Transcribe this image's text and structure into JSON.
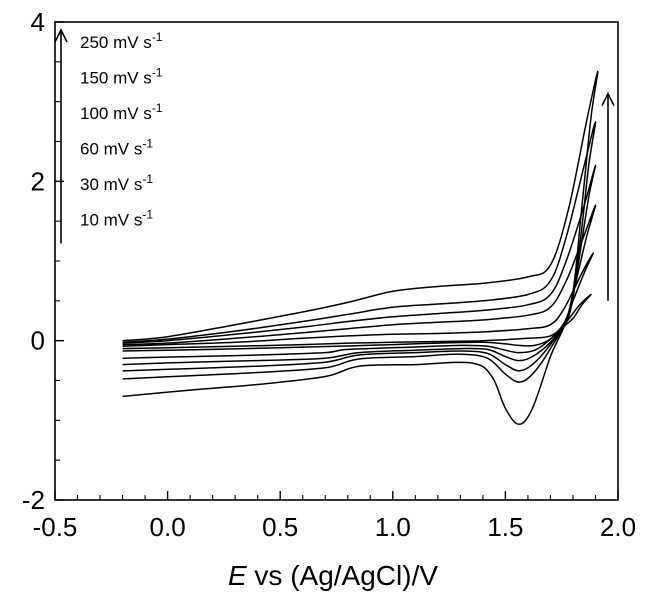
{
  "chart_data": {
    "type": "line",
    "title": "",
    "xlabel_italic": "E",
    "xlabel_rest": " vs (Ag/AgCl)/V",
    "ylabel": "",
    "xlim": [
      -0.5,
      2.0
    ],
    "ylim": [
      -2,
      4
    ],
    "x_ticks": [
      -0.5,
      0.0,
      0.5,
      1.0,
      1.5,
      2.0
    ],
    "x_tick_labels": [
      "-0.5",
      "0.0",
      "0.5",
      "1.0",
      "1.5",
      "2.0"
    ],
    "y_ticks": [
      -2,
      0,
      2,
      4
    ],
    "y_tick_labels": [
      "-2",
      "0",
      "2",
      "4"
    ],
    "grid": false,
    "legend_placement": "top-left",
    "line_color": "#000000",
    "legend": {
      "entries": [
        {
          "value": "250 mV s",
          "exp": "-1"
        },
        {
          "value": "150 mV s",
          "exp": "-1"
        },
        {
          "value": "100 mV s",
          "exp": "-1"
        },
        {
          "value": "60 mV s",
          "exp": "-1"
        },
        {
          "value": "30 mV s",
          "exp": "-1"
        },
        {
          "value": "10 mV s",
          "exp": "-1"
        }
      ],
      "arrow_direction": "up"
    },
    "right_arrow": {
      "x": 2.0,
      "y_from": 0.5,
      "y_to": 3.1
    },
    "series": [
      {
        "scan_rate_mV_s": 10,
        "forward": [
          [
            -0.2,
            -0.1
          ],
          [
            0.0,
            -0.09
          ],
          [
            0.3,
            -0.07
          ],
          [
            0.6,
            -0.05
          ],
          [
            0.8,
            -0.03
          ],
          [
            1.0,
            -0.02
          ],
          [
            1.2,
            -0.01
          ],
          [
            1.4,
            0.0
          ],
          [
            1.6,
            0.03
          ],
          [
            1.7,
            0.06
          ],
          [
            1.76,
            0.2
          ],
          [
            1.83,
            0.45
          ],
          [
            1.88,
            0.58
          ]
        ],
        "reverse": [
          [
            1.88,
            0.58
          ],
          [
            1.84,
            0.45
          ],
          [
            1.8,
            0.28
          ],
          [
            1.76,
            0.18
          ],
          [
            1.7,
            0.02
          ],
          [
            1.63,
            -0.06
          ],
          [
            1.56,
            -0.06
          ],
          [
            1.5,
            -0.04
          ],
          [
            1.4,
            -0.02
          ],
          [
            1.2,
            -0.03
          ],
          [
            1.0,
            -0.05
          ],
          [
            0.75,
            -0.07
          ],
          [
            0.5,
            -0.09
          ],
          [
            0.2,
            -0.11
          ],
          [
            -0.2,
            -0.13
          ]
        ]
      },
      {
        "scan_rate_mV_s": 30,
        "forward": [
          [
            -0.2,
            -0.07
          ],
          [
            0.0,
            -0.05
          ],
          [
            0.3,
            -0.02
          ],
          [
            0.6,
            0.03
          ],
          [
            0.8,
            0.06
          ],
          [
            1.0,
            0.08
          ],
          [
            1.2,
            0.09
          ],
          [
            1.4,
            0.11
          ],
          [
            1.6,
            0.15
          ],
          [
            1.7,
            0.2
          ],
          [
            1.76,
            0.4
          ],
          [
            1.84,
            0.85
          ],
          [
            1.89,
            1.1
          ]
        ],
        "reverse": [
          [
            1.89,
            1.1
          ],
          [
            1.85,
            0.85
          ],
          [
            1.8,
            0.5
          ],
          [
            1.76,
            0.22
          ],
          [
            1.7,
            0.02
          ],
          [
            1.63,
            -0.12
          ],
          [
            1.56,
            -0.15
          ],
          [
            1.5,
            -0.12
          ],
          [
            1.42,
            -0.07
          ],
          [
            1.3,
            -0.06
          ],
          [
            1.1,
            -0.08
          ],
          [
            0.8,
            -0.11
          ],
          [
            0.7,
            -0.15
          ],
          [
            0.4,
            -0.18
          ],
          [
            0.1,
            -0.2
          ],
          [
            -0.2,
            -0.22
          ]
        ]
      },
      {
        "scan_rate_mV_s": 60,
        "forward": [
          [
            -0.2,
            -0.05
          ],
          [
            0.0,
            -0.03
          ],
          [
            0.3,
            0.03
          ],
          [
            0.6,
            0.1
          ],
          [
            0.8,
            0.15
          ],
          [
            1.0,
            0.2
          ],
          [
            1.2,
            0.23
          ],
          [
            1.4,
            0.26
          ],
          [
            1.6,
            0.32
          ],
          [
            1.7,
            0.42
          ],
          [
            1.77,
            0.75
          ],
          [
            1.84,
            1.25
          ],
          [
            1.9,
            1.7
          ]
        ],
        "reverse": [
          [
            1.9,
            1.7
          ],
          [
            1.86,
            1.3
          ],
          [
            1.81,
            0.7
          ],
          [
            1.77,
            0.25
          ],
          [
            1.7,
            -0.02
          ],
          [
            1.62,
            -0.2
          ],
          [
            1.56,
            -0.25
          ],
          [
            1.5,
            -0.2
          ],
          [
            1.42,
            -0.11
          ],
          [
            1.3,
            -0.1
          ],
          [
            1.1,
            -0.12
          ],
          [
            0.85,
            -0.15
          ],
          [
            0.7,
            -0.22
          ],
          [
            0.4,
            -0.25
          ],
          [
            0.1,
            -0.27
          ],
          [
            -0.2,
            -0.3
          ]
        ]
      },
      {
        "scan_rate_mV_s": 100,
        "forward": [
          [
            -0.2,
            -0.03
          ],
          [
            0.0,
            0.0
          ],
          [
            0.3,
            0.08
          ],
          [
            0.6,
            0.17
          ],
          [
            0.8,
            0.24
          ],
          [
            1.0,
            0.3
          ],
          [
            1.2,
            0.34
          ],
          [
            1.4,
            0.38
          ],
          [
            1.6,
            0.45
          ],
          [
            1.7,
            0.58
          ],
          [
            1.77,
            1.0
          ],
          [
            1.85,
            1.7
          ],
          [
            1.9,
            2.2
          ]
        ],
        "reverse": [
          [
            1.9,
            2.2
          ],
          [
            1.87,
            1.8
          ],
          [
            1.82,
            0.9
          ],
          [
            1.78,
            0.3
          ],
          [
            1.7,
            -0.05
          ],
          [
            1.62,
            -0.3
          ],
          [
            1.56,
            -0.38
          ],
          [
            1.5,
            -0.3
          ],
          [
            1.42,
            -0.16
          ],
          [
            1.3,
            -0.13
          ],
          [
            1.1,
            -0.15
          ],
          [
            0.85,
            -0.18
          ],
          [
            0.7,
            -0.27
          ],
          [
            0.4,
            -0.32
          ],
          [
            0.1,
            -0.35
          ],
          [
            -0.2,
            -0.38
          ]
        ]
      },
      {
        "scan_rate_mV_s": 150,
        "forward": [
          [
            -0.2,
            -0.02
          ],
          [
            0.0,
            0.02
          ],
          [
            0.3,
            0.12
          ],
          [
            0.6,
            0.24
          ],
          [
            0.8,
            0.33
          ],
          [
            1.0,
            0.42
          ],
          [
            1.2,
            0.46
          ],
          [
            1.4,
            0.5
          ],
          [
            1.6,
            0.58
          ],
          [
            1.7,
            0.75
          ],
          [
            1.77,
            1.3
          ],
          [
            1.85,
            2.2
          ],
          [
            1.9,
            2.75
          ]
        ],
        "reverse": [
          [
            1.9,
            2.75
          ],
          [
            1.87,
            2.2
          ],
          [
            1.83,
            1.2
          ],
          [
            1.78,
            0.35
          ],
          [
            1.7,
            -0.1
          ],
          [
            1.62,
            -0.42
          ],
          [
            1.56,
            -0.52
          ],
          [
            1.5,
            -0.42
          ],
          [
            1.42,
            -0.22
          ],
          [
            1.3,
            -0.17
          ],
          [
            1.1,
            -0.2
          ],
          [
            0.85,
            -0.23
          ],
          [
            0.7,
            -0.34
          ],
          [
            0.4,
            -0.4
          ],
          [
            0.1,
            -0.44
          ],
          [
            -0.2,
            -0.48
          ]
        ]
      },
      {
        "scan_rate_mV_s": 250,
        "forward": [
          [
            -0.2,
            0.0
          ],
          [
            0.0,
            0.05
          ],
          [
            0.3,
            0.2
          ],
          [
            0.6,
            0.36
          ],
          [
            0.8,
            0.48
          ],
          [
            1.0,
            0.62
          ],
          [
            1.2,
            0.68
          ],
          [
            1.4,
            0.72
          ],
          [
            1.6,
            0.8
          ],
          [
            1.7,
            0.95
          ],
          [
            1.78,
            1.65
          ],
          [
            1.86,
            2.75
          ],
          [
            1.91,
            3.38
          ]
        ],
        "reverse": [
          [
            1.91,
            3.38
          ],
          [
            1.88,
            2.8
          ],
          [
            1.84,
            1.7
          ],
          [
            1.79,
            0.45
          ],
          [
            1.7,
            -0.2
          ],
          [
            1.62,
            -0.85
          ],
          [
            1.56,
            -1.05
          ],
          [
            1.5,
            -0.85
          ],
          [
            1.44,
            -0.45
          ],
          [
            1.35,
            -0.28
          ],
          [
            1.1,
            -0.3
          ],
          [
            0.85,
            -0.32
          ],
          [
            0.7,
            -0.45
          ],
          [
            0.4,
            -0.55
          ],
          [
            0.1,
            -0.62
          ],
          [
            -0.2,
            -0.7
          ]
        ]
      }
    ]
  }
}
